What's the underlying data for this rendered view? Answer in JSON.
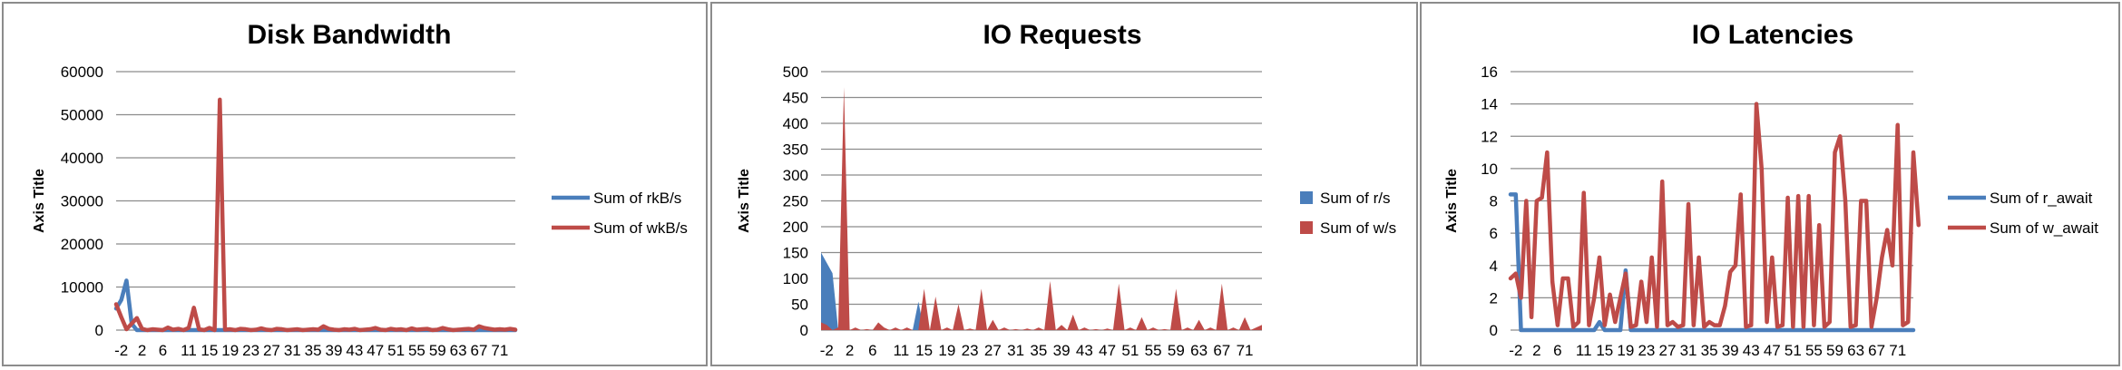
{
  "colors": {
    "blue": "#4a7ebb",
    "red": "#be4b48"
  },
  "chart_data": [
    {
      "type": "line",
      "title": "Disk Bandwidth",
      "ylabel": "Axis Title",
      "ylim": [
        0,
        60000
      ],
      "yticks": [
        0,
        10000,
        20000,
        30000,
        40000,
        50000,
        60000
      ],
      "xticks": [
        -2,
        2,
        6,
        11,
        15,
        19,
        23,
        27,
        31,
        35,
        39,
        43,
        47,
        51,
        55,
        59,
        63,
        67,
        71
      ],
      "x_start": -3,
      "legend_position": "right",
      "series": [
        {
          "name": "Sum of rkB/s",
          "color": "blue",
          "values": [
            5000,
            7000,
            11500,
            1500,
            0,
            0,
            0,
            0,
            0,
            0,
            0,
            0,
            0,
            0,
            0,
            0,
            0,
            0,
            0,
            0,
            0,
            0,
            0,
            0,
            0,
            0,
            0,
            0,
            0,
            0,
            0,
            0,
            0,
            0,
            0,
            0,
            0,
            0,
            0,
            0,
            0,
            0,
            0,
            0,
            0,
            0,
            0,
            0,
            0,
            0,
            0,
            0,
            0,
            0,
            0,
            0,
            0,
            0,
            0,
            0,
            0,
            0,
            0,
            0,
            0,
            0,
            0,
            0,
            0,
            0,
            0,
            0,
            0,
            0,
            0,
            0,
            0,
            0
          ]
        },
        {
          "name": "Sum of wkB/s",
          "color": "red",
          "values": [
            6000,
            3000,
            200,
            1500,
            2800,
            300,
            0,
            200,
            100,
            0,
            600,
            100,
            300,
            0,
            500,
            5200,
            200,
            0,
            500,
            0,
            53500,
            100,
            200,
            0,
            300,
            200,
            0,
            100,
            400,
            100,
            0,
            300,
            200,
            0,
            100,
            200,
            0,
            100,
            200,
            100,
            900,
            300,
            100,
            0,
            200,
            100,
            300,
            0,
            100,
            200,
            500,
            100,
            0,
            300,
            100,
            200,
            0,
            400,
            100,
            200,
            300,
            0,
            100,
            500,
            200,
            0,
            100,
            200,
            300,
            100,
            900,
            500,
            300,
            100,
            200,
            100,
            300,
            100
          ]
        }
      ]
    },
    {
      "type": "area",
      "title": "IO Requests",
      "ylabel": "Axis Title",
      "ylim": [
        0,
        500
      ],
      "yticks": [
        0,
        50,
        100,
        150,
        200,
        250,
        300,
        350,
        400,
        450,
        500
      ],
      "xticks": [
        -2,
        2,
        6,
        11,
        15,
        19,
        23,
        27,
        31,
        35,
        39,
        43,
        47,
        51,
        55,
        59,
        63,
        67,
        71
      ],
      "x_start": -3,
      "legend_position": "right",
      "series": [
        {
          "name": "Sum of r/s",
          "color": "blue",
          "values": [
            150,
            130,
            110,
            0,
            0,
            0,
            0,
            0,
            0,
            0,
            0,
            0,
            0,
            0,
            0,
            0,
            0,
            55,
            0,
            0,
            0,
            0,
            0,
            0,
            0,
            0,
            0,
            0,
            0,
            0,
            0,
            0,
            0,
            0,
            0,
            0,
            0,
            0,
            0,
            0,
            0,
            0,
            0,
            0,
            0,
            0,
            0,
            0,
            0,
            0,
            0,
            0,
            0,
            0,
            0,
            0,
            0,
            0,
            0,
            0,
            0,
            0,
            0,
            0,
            0,
            0,
            0,
            0,
            0,
            0,
            0,
            0,
            0,
            0,
            0,
            0,
            0,
            0
          ]
        },
        {
          "name": "Sum of w/s",
          "color": "red",
          "values": [
            15,
            10,
            0,
            5,
            470,
            0,
            5,
            0,
            2,
            0,
            15,
            5,
            0,
            5,
            0,
            5,
            0,
            0,
            80,
            0,
            65,
            0,
            5,
            0,
            50,
            0,
            3,
            0,
            80,
            0,
            20,
            0,
            5,
            0,
            2,
            0,
            3,
            0,
            5,
            0,
            95,
            0,
            10,
            0,
            30,
            0,
            5,
            0,
            2,
            0,
            3,
            0,
            90,
            0,
            5,
            0,
            25,
            0,
            5,
            0,
            2,
            0,
            80,
            0,
            5,
            0,
            20,
            0,
            5,
            0,
            90,
            0,
            5,
            0,
            25,
            0,
            5,
            10
          ]
        }
      ]
    },
    {
      "type": "line",
      "title": "IO Latencies",
      "ylabel": "Axis Title",
      "ylim": [
        0,
        16
      ],
      "yticks": [
        0,
        2,
        4,
        6,
        8,
        10,
        12,
        14,
        16
      ],
      "xticks": [
        -2,
        2,
        6,
        11,
        15,
        19,
        23,
        27,
        31,
        35,
        39,
        43,
        47,
        51,
        55,
        59,
        63,
        67,
        71
      ],
      "x_start": -3,
      "legend_position": "right",
      "series": [
        {
          "name": "Sum of r_await",
          "color": "blue",
          "values": [
            8.4,
            8.4,
            0,
            0,
            0,
            0,
            0,
            0,
            0,
            0,
            0,
            0,
            0,
            0,
            0,
            0,
            0,
            0.5,
            0,
            0,
            0,
            0,
            3.7,
            0,
            0,
            0,
            0,
            0,
            0,
            0,
            0,
            0,
            0,
            0,
            0,
            0,
            0,
            0,
            0,
            0,
            0,
            0,
            0,
            0,
            0,
            0,
            0,
            0,
            0,
            0,
            0,
            0,
            0,
            0,
            0,
            0,
            0,
            0,
            0,
            0,
            0,
            0,
            0,
            0,
            0,
            0,
            0,
            0,
            0,
            0,
            0,
            0,
            0,
            0,
            0,
            0,
            0,
            0
          ]
        },
        {
          "name": "Sum of w_await",
          "color": "red",
          "values": [
            3.2,
            3.5,
            2.0,
            8.0,
            0.8,
            8.0,
            8.2,
            11.0,
            3.0,
            0.3,
            3.2,
            3.2,
            0.2,
            0.5,
            8.5,
            0.3,
            2.0,
            4.5,
            0.3,
            2.2,
            0.5,
            2.0,
            3.5,
            0.2,
            0.3,
            3.0,
            0.5,
            4.5,
            0.2,
            9.2,
            0.3,
            0.5,
            0.2,
            0.3,
            7.8,
            0.3,
            4.5,
            0.2,
            0.5,
            0.3,
            0.3,
            1.5,
            3.6,
            4.0,
            8.4,
            0.2,
            0.3,
            14.0,
            10.0,
            0.5,
            4.5,
            0.2,
            0.3,
            8.2,
            0.2,
            8.3,
            0.2,
            8.3,
            0.3,
            6.5,
            0.2,
            0.5,
            11.0,
            12.0,
            8.0,
            0.2,
            0.3,
            8.0,
            8.0,
            0.2,
            2.0,
            4.5,
            6.2,
            4.0,
            12.7,
            0.3,
            0.5,
            11.0,
            6.5
          ]
        }
      ]
    }
  ]
}
